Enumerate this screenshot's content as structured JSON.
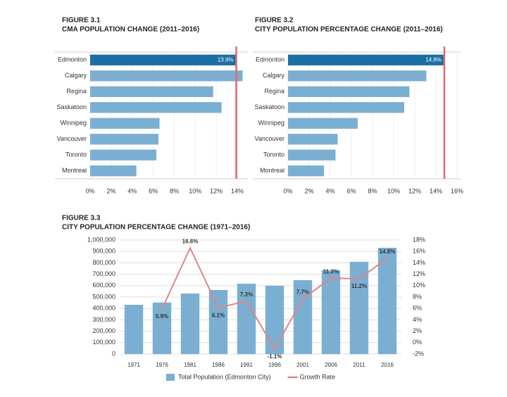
{
  "chart_data": [
    {
      "type": "hbar",
      "figure_label": "FIGURE 3.1",
      "title": "CMA POPULATION CHANGE (2011–2016)",
      "categories": [
        "Edmonton",
        "Calgary",
        "Regina",
        "Saskatoon",
        "Winnipeg",
        "Vancouver",
        "Toronto",
        "Montreal"
      ],
      "values": [
        13.9,
        14.5,
        11.7,
        12.5,
        6.6,
        6.5,
        6.3,
        4.4
      ],
      "value_labels": [
        "13.9%",
        null,
        null,
        null,
        null,
        null,
        null,
        null
      ],
      "colors": [
        "#1b6fa3",
        "#7aafd2",
        "#7aafd2",
        "#7aafd2",
        "#7aafd2",
        "#7aafd2",
        "#7aafd2",
        "#7aafd2"
      ],
      "reference_line": {
        "value": 13.9,
        "color": "#e06b6b"
      },
      "xlim": [
        0,
        14.6
      ],
      "xticks": [
        {
          "value": 0,
          "label": "0%"
        },
        {
          "value": 2,
          "label": "2%"
        },
        {
          "value": 4,
          "label": "4%"
        },
        {
          "value": 6,
          "label": "6%"
        },
        {
          "value": 8,
          "label": "8%"
        },
        {
          "value": 10,
          "label": "10%"
        },
        {
          "value": 12,
          "label": "12%"
        },
        {
          "value": 14,
          "label": "14%"
        }
      ],
      "grid": true
    },
    {
      "type": "hbar",
      "figure_label": "FIGURE 3.2",
      "title": "CITY POPULATION PERCENTAGE CHANGE (2011–2016)",
      "categories": [
        "Edmonton",
        "Calgary",
        "Regina",
        "Saskatoon",
        "Winnipeg",
        "Vancouver",
        "Toronto",
        "Montreal"
      ],
      "values": [
        14.8,
        13.1,
        11.5,
        11.0,
        6.6,
        4.7,
        4.5,
        3.4
      ],
      "value_labels": [
        "14.8%",
        null,
        null,
        null,
        null,
        null,
        null,
        null
      ],
      "colors": [
        "#1b6fa3",
        "#7aafd2",
        "#7aafd2",
        "#7aafd2",
        "#7aafd2",
        "#7aafd2",
        "#7aafd2",
        "#7aafd2"
      ],
      "reference_line": {
        "value": 14.8,
        "color": "#e06b6b"
      },
      "xlim": [
        0,
        16
      ],
      "xticks": [
        {
          "value": 0,
          "label": "0%"
        },
        {
          "value": 2,
          "label": "2%"
        },
        {
          "value": 4,
          "label": "4%"
        },
        {
          "value": 6,
          "label": "6%"
        },
        {
          "value": 8,
          "label": "8%"
        },
        {
          "value": 10,
          "label": "10%"
        },
        {
          "value": 12,
          "label": "12%"
        },
        {
          "value": 14,
          "label": "14%"
        },
        {
          "value": 16,
          "label": "16%"
        }
      ],
      "grid": true
    },
    {
      "type": "combo",
      "figure_label": "FIGURE 3.3",
      "title": "CITY POPULATION PERCENTAGE CHANGE (1971–2016)",
      "categories": [
        "1971",
        "1976",
        "1981",
        "1986",
        "1991",
        "1996",
        "2001",
        "2006",
        "2011",
        "2016"
      ],
      "series": [
        {
          "name": "Total Population (Edmonton City)",
          "type": "bar",
          "color": "#7aafd2",
          "values": [
            432000,
            452000,
            531000,
            562000,
            617000,
            599000,
            648000,
            735000,
            809000,
            932000
          ]
        },
        {
          "name": "Growth Rate",
          "type": "line",
          "axis": "y2",
          "color": "#e08585",
          "values": [
            null,
            5.9,
            16.6,
            6.1,
            7.3,
            -1.1,
            7.7,
            11.3,
            11.2,
            14.8
          ],
          "value_labels": [
            null,
            "5.9%",
            "16.6%",
            "6.1%",
            "7.3%",
            "-1.1%",
            "7.7%",
            "11.3%",
            "11.2%",
            "14.8%"
          ]
        }
      ],
      "ylim": [
        0,
        1000000
      ],
      "yticks": [
        0,
        {
          "value": 100000,
          "label": "100,000"
        },
        {
          "value": 200000,
          "label": "200,000"
        },
        {
          "value": 300000,
          "label": "300,000"
        },
        {
          "value": 400000,
          "label": "400,000"
        },
        {
          "value": 500000,
          "label": "500,000"
        },
        {
          "value": 600000,
          "label": "600,000"
        },
        {
          "value": 700000,
          "label": "700,000"
        },
        {
          "value": 800000,
          "label": "800,000"
        },
        {
          "value": 900000,
          "label": "900,000"
        },
        {
          "value": 1000000,
          "label": "1,000,000"
        }
      ],
      "y2lim": [
        -2,
        18
      ],
      "y2ticks": [
        {
          "value": -2,
          "label": "-2%"
        },
        {
          "value": 0,
          "label": "0%"
        },
        {
          "value": 2,
          "label": "2%"
        },
        {
          "value": 4,
          "label": "4%"
        },
        {
          "value": 6,
          "label": "6%"
        },
        {
          "value": 8,
          "label": "8%"
        },
        {
          "value": 10,
          "label": "10%"
        },
        {
          "value": 12,
          "label": "12%"
        },
        {
          "value": 14,
          "label": "14%"
        },
        {
          "value": 16,
          "label": "16%"
        },
        {
          "value": 18,
          "label": "18%"
        }
      ],
      "grid": true
    }
  ]
}
